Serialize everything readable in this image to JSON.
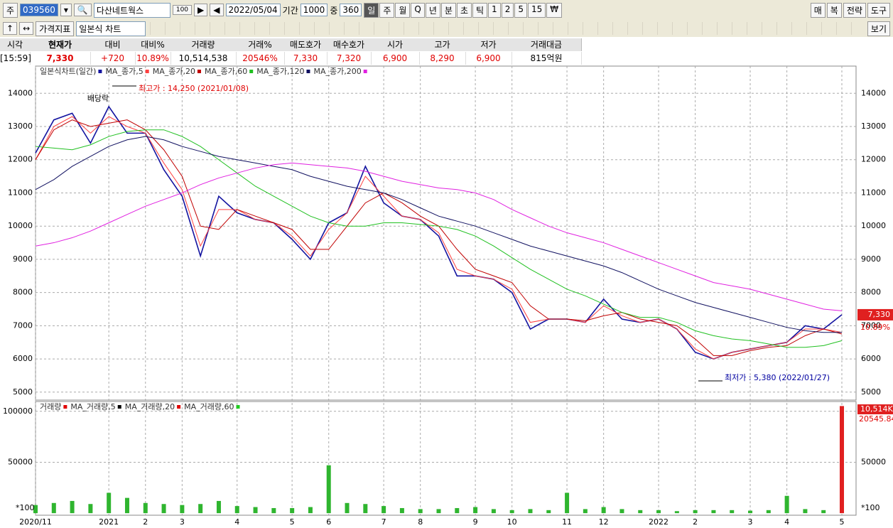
{
  "toolbar": {
    "market": "주",
    "code": "039560",
    "name": "다산네트웍스",
    "name_badge": "100",
    "date": "2022/05/04",
    "period_label": "기간",
    "period": "1000",
    "zoom_label": "중",
    "zoom": "360",
    "intervals": [
      "일",
      "주",
      "월",
      "Q",
      "년",
      "분",
      "초",
      "틱",
      "1",
      "2",
      "5",
      "15",
      "₩"
    ],
    "right_buttons": [
      "매",
      "복",
      "전략",
      "도구"
    ],
    "indicator_button": "가격지표",
    "chart_style": "일본식 차트",
    "view_button": "보기"
  },
  "quote_table": {
    "headers": [
      "시각",
      "현재가",
      "대비",
      "대비%",
      "거래량",
      "거래%",
      "매도호가",
      "매수호가",
      "시가",
      "고가",
      "저가",
      "거래대금"
    ],
    "values": [
      "[15:59]",
      "7,330",
      "+720",
      "10.89%",
      "10,514,538",
      "20546%",
      "7,330",
      "7,320",
      "6,900",
      "8,290",
      "6,900",
      "815억원"
    ]
  },
  "chart_data": [
    {
      "type": "line",
      "ylim": [
        4760,
        14820
      ],
      "yticks": [
        5000,
        6000,
        7000,
        8000,
        9000,
        10000,
        11000,
        12000,
        13000,
        14000
      ],
      "grid": true,
      "series": [
        {
          "name": "일본식차트(일간)",
          "color": "#1414a0",
          "values": [
            12200,
            13200,
            13400,
            12500,
            13600,
            12800,
            12800,
            11700,
            10900,
            9100,
            10900,
            10400,
            10200,
            10100,
            9600,
            9000,
            10100,
            10400,
            11800,
            10700,
            10300,
            10200,
            9700,
            8500,
            8500,
            8400,
            8000,
            6900,
            7200,
            7200,
            7100,
            7800,
            7200,
            7100,
            7200,
            6900,
            6200,
            6000,
            6200,
            6300,
            6400,
            6500,
            7000,
            6900,
            7330
          ]
        },
        {
          "name": "MA_종가,5",
          "color": "#ff4040",
          "values": [
            12000,
            13000,
            13300,
            12800,
            13300,
            13000,
            12800,
            11900,
            11100,
            9400,
            10500,
            10500,
            10200,
            10100,
            9700,
            9100,
            9900,
            10400,
            11500,
            10900,
            10300,
            10200,
            9800,
            8700,
            8500,
            8400,
            8100,
            7100,
            7200,
            7200,
            7100,
            7600,
            7300,
            7100,
            7200,
            6900,
            6300,
            6000,
            6200,
            6300,
            6400,
            6500,
            6900,
            6900,
            6800
          ]
        },
        {
          "name": "MA_종가,20",
          "color": "#c00000",
          "values": [
            12000,
            12900,
            13200,
            13000,
            13100,
            13200,
            12900,
            12300,
            11500,
            10000,
            9900,
            10500,
            10300,
            10100,
            9900,
            9300,
            9300,
            10000,
            10700,
            11000,
            10700,
            10300,
            10000,
            9300,
            8700,
            8500,
            8300,
            7600,
            7200,
            7200,
            7150,
            7300,
            7400,
            7200,
            7100,
            7000,
            6600,
            6100,
            6100,
            6250,
            6350,
            6400,
            6700,
            6900,
            6750
          ]
        },
        {
          "name": "MA_종가,60",
          "color": "#20c020",
          "values": [
            12400,
            12350,
            12300,
            12450,
            12700,
            12850,
            12900,
            12900,
            12700,
            12400,
            12000,
            11600,
            11200,
            10900,
            10600,
            10300,
            10100,
            10000,
            10000,
            10100,
            10100,
            10050,
            10000,
            9900,
            9700,
            9400,
            9050,
            8700,
            8400,
            8100,
            7900,
            7650,
            7400,
            7250,
            7250,
            7100,
            6850,
            6700,
            6600,
            6550,
            6450,
            6350,
            6350,
            6400,
            6550
          ]
        },
        {
          "name": "MA_종가,120",
          "color": "#101060",
          "values": [
            11100,
            11400,
            11800,
            12100,
            12400,
            12600,
            12700,
            12600,
            12400,
            12250,
            12100,
            12000,
            11900,
            11800,
            11700,
            11500,
            11350,
            11200,
            11100,
            11000,
            10800,
            10550,
            10300,
            10150,
            10000,
            9800,
            9600,
            9400,
            9250,
            9100,
            8950,
            8800,
            8600,
            8350,
            8100,
            7900,
            7700,
            7550,
            7400,
            7250,
            7100,
            6950,
            6850,
            6800,
            6800
          ]
        },
        {
          "name": "MA_종가,200",
          "color": "#e020e0",
          "values": [
            9400,
            9500,
            9650,
            9850,
            10100,
            10350,
            10600,
            10800,
            11000,
            11250,
            11450,
            11600,
            11750,
            11850,
            11900,
            11850,
            11800,
            11750,
            11650,
            11500,
            11350,
            11250,
            11150,
            11100,
            11000,
            10800,
            10500,
            10250,
            10000,
            9800,
            9650,
            9500,
            9300,
            9100,
            8900,
            8700,
            8500,
            8300,
            8200,
            8100,
            7950,
            7800,
            7650,
            7500,
            7450
          ]
        }
      ],
      "annotations": [
        "최고가 : 14,250 (2021/01/08)",
        "최저가 : 5,380 (2022/01/27)",
        "배당락"
      ],
      "last_label": "7,330",
      "change_label": "10.89%"
    },
    {
      "type": "bar",
      "ylim": [
        -2000,
        109600
      ],
      "yticks": [
        50000,
        100000
      ],
      "grid": true,
      "categories": [
        "2020/11",
        null,
        null,
        null,
        "2021",
        null,
        "2",
        null,
        "3",
        null,
        null,
        "4",
        null,
        null,
        "5",
        null,
        "6",
        null,
        null,
        "7",
        null,
        "8",
        null,
        null,
        "9",
        null,
        "10",
        null,
        null,
        "11",
        null,
        "12",
        null,
        null,
        "2022",
        null,
        "2",
        null,
        null,
        "3",
        null,
        "4",
        null,
        null,
        "5"
      ],
      "series": [
        {
          "name": "거래량",
          "color": "#2fb52f",
          "values": [
            8000,
            10000,
            12000,
            9000,
            20000,
            15000,
            10000,
            9000,
            8000,
            9000,
            12000,
            7000,
            6000,
            5000,
            5000,
            6000,
            47000,
            10000,
            9000,
            7000,
            5000,
            4000,
            4000,
            5000,
            6000,
            4000,
            3000,
            4000,
            3000,
            20000,
            4000,
            6000,
            4000,
            3000,
            3000,
            2000,
            3000,
            3000,
            3000,
            2500,
            3000,
            17000,
            4000,
            3000,
            105145
          ]
        }
      ],
      "ma_legend": [
        {
          "name": "MA_거래량,5",
          "color": "#000000"
        },
        {
          "name": "MA_거래량,20",
          "color": "#e00000"
        },
        {
          "name": "MA_거래량,60",
          "color": "#22cc22"
        }
      ],
      "unit_label": "*100",
      "last_label": "10,514K",
      "change_label": "20545.84%"
    }
  ]
}
